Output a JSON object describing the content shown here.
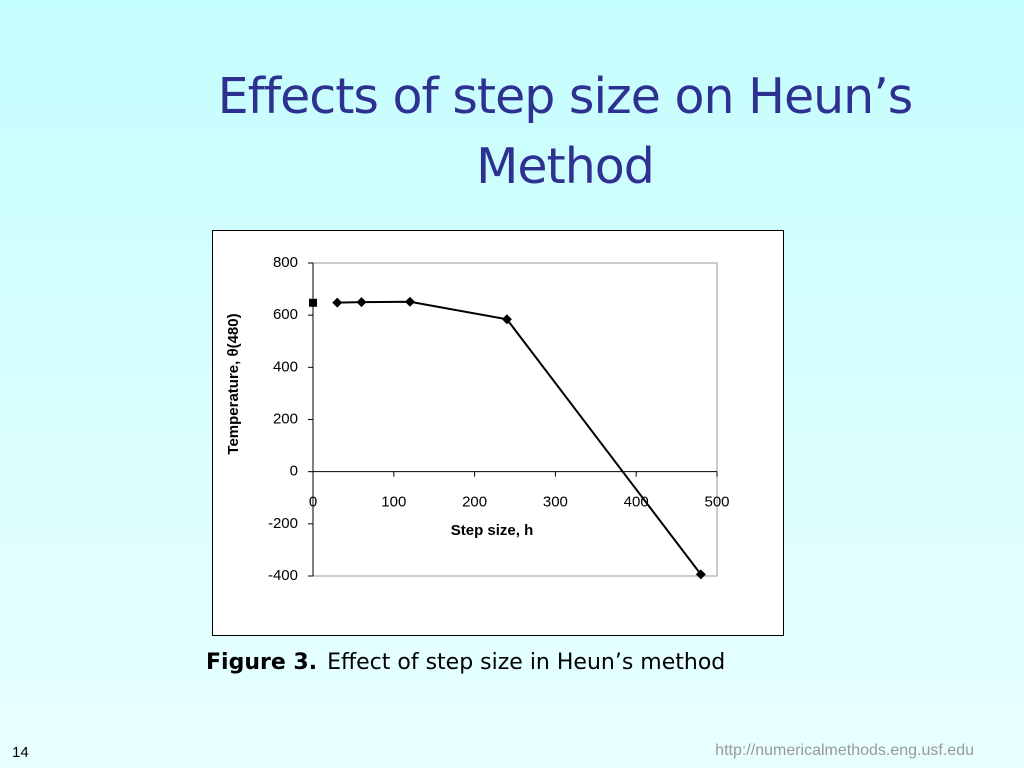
{
  "slide": {
    "title": "Effects of step size on Heun’s Method",
    "caption_label": "Figure 3.",
    "caption": "Effect of step size in Heun’s method",
    "page_number": "14",
    "url": "http://numericalmethods.eng.usf.edu"
  },
  "chart_data": {
    "type": "line",
    "xlabel": "Step size, h",
    "ylabel": "Temperature,  θ(480)",
    "series": [
      {
        "x": [
          30,
          60,
          120,
          240,
          480
        ],
        "values": [
          648.21,
          649.91,
          651.35,
          584.27,
          -393.87
        ],
        "color": "#000000",
        "marker": "diamond",
        "line": true
      },
      {
        "x": [
          0
        ],
        "values": [
          647.57
        ],
        "color": "#000000",
        "marker": "square",
        "line": false
      }
    ],
    "xlim": [
      0,
      500
    ],
    "xticks": [
      0,
      100,
      200,
      300,
      400,
      500
    ],
    "ylim": [
      -400,
      800
    ],
    "yticks": [
      -400,
      -200,
      0,
      200,
      400,
      600,
      800
    ],
    "grid": false
  }
}
